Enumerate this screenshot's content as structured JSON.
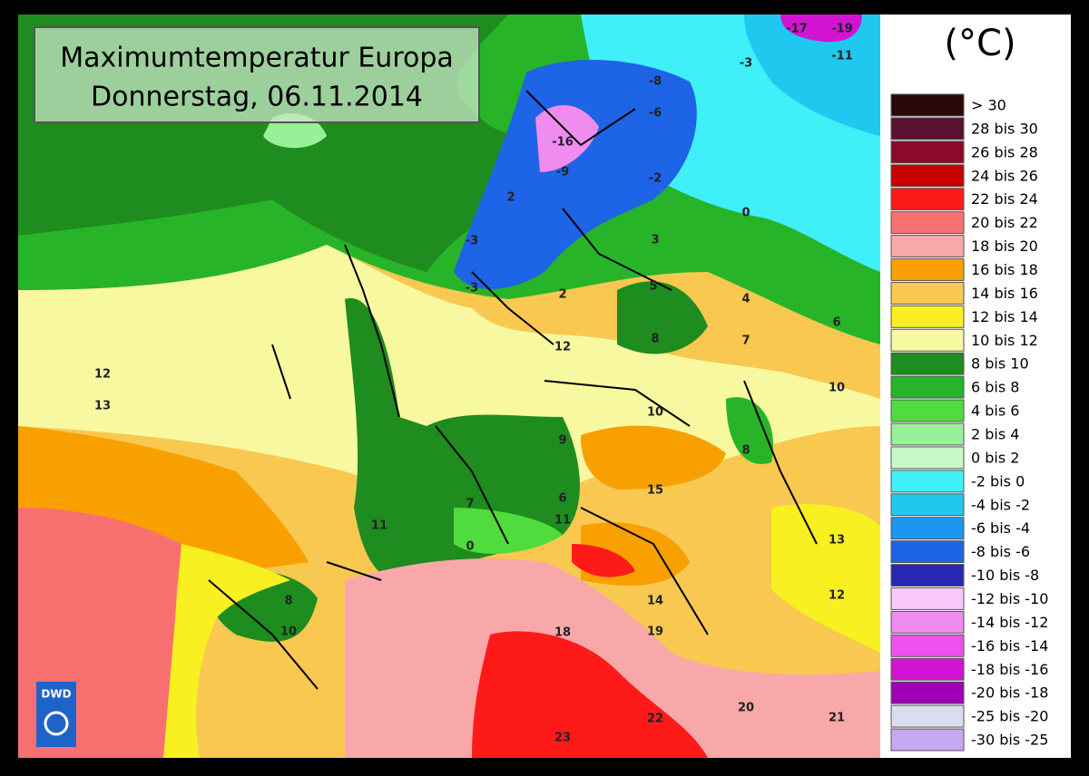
{
  "header": {
    "title": "Maximumtemperatur Europa",
    "subtitle": "Donnerstag, 06.11.2014",
    "unit": "(°C)"
  },
  "logo": "DWD",
  "legend": [
    {
      "label": "> 30",
      "color": "#2a0808"
    },
    {
      "label": "28 bis 30",
      "color": "#5a1030"
    },
    {
      "label": "26 bis 28",
      "color": "#8b0a2a"
    },
    {
      "label": "24 bis 26",
      "color": "#c80000"
    },
    {
      "label": "22 bis 24",
      "color": "#ff1a1a"
    },
    {
      "label": "20 bis 22",
      "color": "#f87070"
    },
    {
      "label": "18 bis 20",
      "color": "#f8a8a8"
    },
    {
      "label": "16 bis 18",
      "color": "#f8a000"
    },
    {
      "label": "14 bis 16",
      "color": "#f8c850"
    },
    {
      "label": "12 bis 14",
      "color": "#f8f020"
    },
    {
      "label": "10 bis 12",
      "color": "#f8f8a0"
    },
    {
      "label": "8 bis 10",
      "color": "#1e8c1e"
    },
    {
      "label": "6 bis 8",
      "color": "#28b428"
    },
    {
      "label": "4 bis 6",
      "color": "#50dc3c"
    },
    {
      "label": "2 bis 4",
      "color": "#98f098"
    },
    {
      "label": "0 bis 2",
      "color": "#c8f8c8"
    },
    {
      "label": "-2 bis 0",
      "color": "#40f0f8"
    },
    {
      "label": "-4 bis -2",
      "color": "#20c8f0"
    },
    {
      "label": "-6 bis -4",
      "color": "#1e96f0"
    },
    {
      "label": "-8 bis -6",
      "color": "#1e64e6"
    },
    {
      "label": "-10 bis -8",
      "color": "#2828b4"
    },
    {
      "label": "-12 bis -10",
      "color": "#f8c8f8"
    },
    {
      "label": "-14 bis -12",
      "color": "#f08cf0"
    },
    {
      "label": "-16 bis -14",
      "color": "#f050f0"
    },
    {
      "label": "-18 bis -16",
      "color": "#d214d2"
    },
    {
      "label": "-20 bis -18",
      "color": "#a000b4"
    },
    {
      "label": "-25 bis -20",
      "color": "#dcdcf0"
    },
    {
      "label": "-30 bis -25",
      "color": "#c8a8f0"
    }
  ],
  "map_labels": [
    "-17",
    "-19",
    "-11",
    "-3",
    "-8",
    "-6",
    "-16",
    "-9",
    "-2",
    "0",
    "2",
    "-3",
    "-3",
    "2",
    "3",
    "5",
    "4",
    "6",
    "7",
    "8",
    "12",
    "12",
    "13",
    "10",
    "10",
    "9",
    "8",
    "7",
    "6",
    "11",
    "11",
    "15",
    "0",
    "13",
    "12",
    "14",
    "19",
    "18",
    "8",
    "10",
    "20",
    "21",
    "22",
    "23"
  ]
}
